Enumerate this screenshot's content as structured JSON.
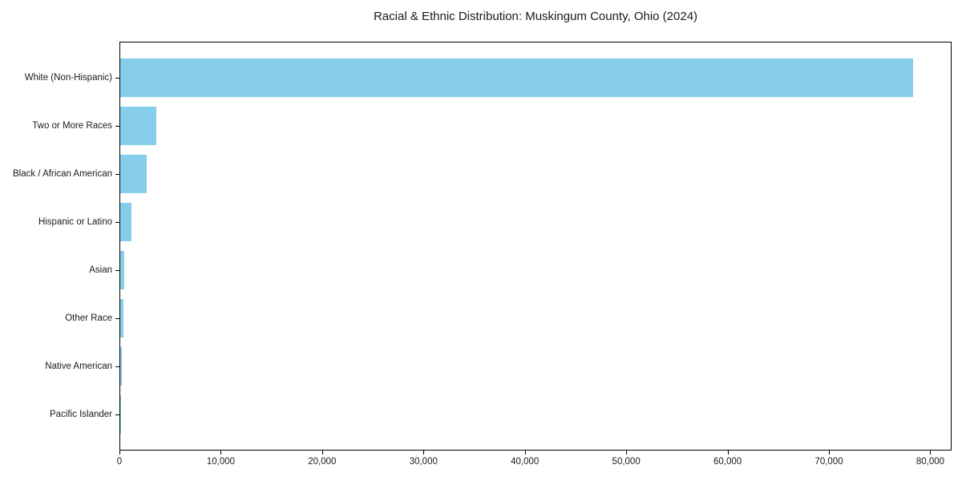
{
  "title": "Racial & Ethnic Distribution: Muskingum County, Ohio (2024)",
  "chart_data": {
    "type": "bar",
    "orientation": "horizontal",
    "title": "Racial & Ethnic Distribution: Muskingum County, Ohio (2024)",
    "xlabel": "",
    "ylabel": "",
    "grid": false,
    "legend": null,
    "bar_color": "#87CEEB",
    "axis_color": "#000000",
    "text_color": "#1a1a1a",
    "background_color": "#ffffff",
    "categories": [
      "White (Non-Hispanic)",
      "Two or More Races",
      "Black / African American",
      "Hispanic or Latino",
      "Asian",
      "Other Race",
      "Native American",
      "Pacific Islander"
    ],
    "values": [
      78200,
      3570,
      2640,
      1090,
      400,
      340,
      120,
      30
    ],
    "xlim": [
      0,
      82100
    ],
    "x_ticks": [
      {
        "value": 0,
        "label": "0"
      },
      {
        "value": 10000,
        "label": "10,000"
      },
      {
        "value": 20000,
        "label": "20,000"
      },
      {
        "value": 30000,
        "label": "30,000"
      },
      {
        "value": 40000,
        "label": "40,000"
      },
      {
        "value": 50000,
        "label": "50,000"
      },
      {
        "value": 60000,
        "label": "60,000"
      },
      {
        "value": 70000,
        "label": "70,000"
      },
      {
        "value": 80000,
        "label": "80,000"
      }
    ]
  }
}
